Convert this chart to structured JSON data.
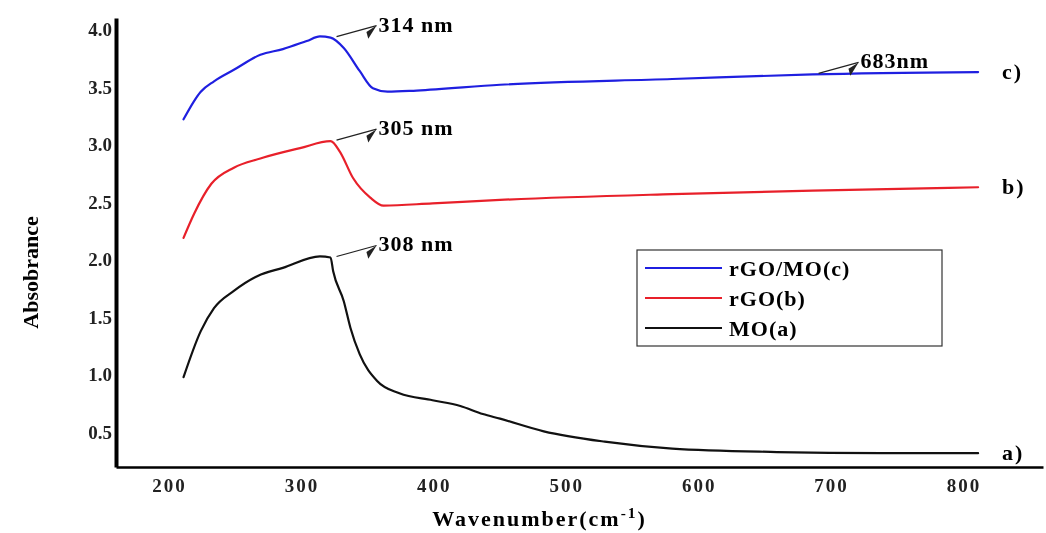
{
  "chart_data": {
    "type": "line",
    "xlabel": "Wavenumber(cm$^{-1}$)",
    "ylabel": "Absobrance",
    "xlim": [
      160,
      860
    ],
    "xticks": [
      200,
      300,
      400,
      500,
      600,
      700,
      800
    ],
    "ylim": [
      0.2,
      4.1
    ],
    "yticks": [
      {
        "value": 0.5,
        "label": "0.5"
      },
      {
        "value": 1,
        "label": "1.0"
      },
      {
        "value": 1.5,
        "label": "1.5"
      },
      {
        "value": 2,
        "label": "2.0"
      },
      {
        "value": 2.5,
        "label": "2.5"
      },
      {
        "value": 3,
        "label": "3.0"
      },
      {
        "value": 3.5,
        "label": "3.5"
      },
      {
        "value": 4,
        "label": "4.0"
      }
    ],
    "grid": false,
    "legend": "right",
    "series": [
      {
        "name": "rGO/MO(c)",
        "color": "#1f1fe0",
        "x": [
          211,
          224,
          234,
          249,
          269,
          286,
          304,
          314,
          322,
          332,
          344,
          354,
          365,
          387,
          450,
          580,
          686,
          811
        ],
        "values": [
          3.22,
          3.46,
          3.55,
          3.65,
          3.78,
          3.83,
          3.9,
          3.94,
          3.93,
          3.84,
          3.64,
          3.49,
          3.46,
          3.47,
          3.52,
          3.57,
          3.61,
          3.63
        ]
      },
      {
        "name": "rGO(b)",
        "color": "#e8202a",
        "x": [
          211,
          219,
          232,
          249,
          269,
          299,
          322,
          329,
          339,
          352,
          362,
          399,
          450,
          580,
          686,
          811
        ],
        "values": [
          2.19,
          2.4,
          2.66,
          2.8,
          2.88,
          2.97,
          3.03,
          2.94,
          2.71,
          2.54,
          2.47,
          2.49,
          2.52,
          2.57,
          2.6,
          2.63
        ]
      },
      {
        "name": "MO(a)",
        "color": "#111111",
        "x": [
          211,
          224,
          234,
          249,
          267,
          286,
          314,
          322,
          324,
          332,
          337,
          344,
          357,
          374,
          399,
          420,
          437,
          450,
          483,
          529,
          580,
          659,
          738,
          811
        ],
        "values": [
          0.98,
          1.38,
          1.58,
          1.73,
          1.86,
          1.93,
          2.03,
          2.02,
          1.9,
          1.64,
          1.41,
          1.18,
          0.95,
          0.84,
          0.78,
          0.73,
          0.66,
          0.62,
          0.51,
          0.42,
          0.36,
          0.33,
          0.32,
          0.32
        ]
      }
    ],
    "annotations": [
      {
        "text": "314 nm",
        "x": 322,
        "y": 3.93
      },
      {
        "text": "305 nm",
        "x": 322,
        "y": 3.03
      },
      {
        "text": "308 nm",
        "x": 322,
        "y": 2.02
      },
      {
        "text": "683nm",
        "x": 686,
        "y": 3.61
      },
      {
        "text": "c)",
        "x": 811,
        "y": 3.63
      },
      {
        "text": "b)",
        "x": 811,
        "y": 2.63
      },
      {
        "text": "a)",
        "x": 811,
        "y": 0.32
      }
    ]
  }
}
